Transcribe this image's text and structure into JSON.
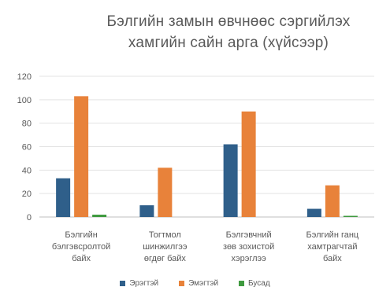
{
  "chart_data": {
    "type": "bar",
    "title_lines": [
      "Бэлгийн замын өвчнөөс сэргийлэх",
      "хамгийн сайн арга (хүйсээр)"
    ],
    "categories": [
      [
        "Бэлгийн",
        "бэлгэвсролтой",
        "байх"
      ],
      [
        "Тогтмол",
        "шинжилгээ",
        "өгдөг байх"
      ],
      [
        "Бэлгэвчний",
        "зөв зохистой",
        "хэрэглээ"
      ],
      [
        "Бэлгийн ганц",
        "хамтрагчтай",
        "байх"
      ]
    ],
    "series": [
      {
        "name": "Эрэгтэй",
        "color": "#2f5f8a",
        "values": [
          33,
          10,
          62,
          7
        ]
      },
      {
        "name": "Эмэгтэй",
        "color": "#e8823a",
        "values": [
          103,
          42,
          90,
          27
        ]
      },
      {
        "name": "Бусад",
        "color": "#3f9a3f",
        "values": [
          2,
          0,
          0,
          1
        ]
      }
    ],
    "ylim": [
      0,
      120
    ],
    "yticks": [
      "0",
      "20",
      "40",
      "60",
      "80",
      "100",
      "120"
    ],
    "grid": true,
    "legend_position": "bottom"
  }
}
